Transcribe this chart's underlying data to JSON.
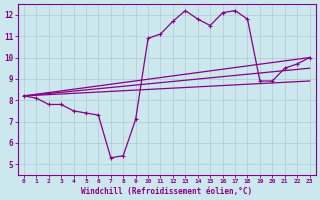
{
  "xlabel": "Windchill (Refroidissement éolien,°C)",
  "bg_color": "#cce8ee",
  "grid_color": "#aacccc",
  "line_color": "#880088",
  "xlim": [
    -0.5,
    23.5
  ],
  "ylim": [
    4.5,
    12.5
  ],
  "xticks": [
    0,
    1,
    2,
    3,
    4,
    5,
    6,
    7,
    8,
    9,
    10,
    11,
    12,
    13,
    14,
    15,
    16,
    17,
    18,
    19,
    20,
    21,
    22,
    23
  ],
  "yticks": [
    5,
    6,
    7,
    8,
    9,
    10,
    11,
    12
  ],
  "line1_x": [
    0,
    1,
    2,
    3,
    4,
    5,
    6,
    7,
    8,
    9,
    10,
    11,
    12,
    13,
    14,
    15,
    16,
    17,
    18,
    19,
    20,
    21,
    22,
    23
  ],
  "line1_y": [
    8.2,
    8.1,
    7.8,
    7.8,
    7.5,
    7.4,
    7.3,
    5.3,
    5.4,
    7.1,
    10.9,
    11.1,
    11.7,
    12.2,
    11.8,
    11.5,
    12.1,
    12.2,
    11.8,
    8.9,
    8.9,
    9.5,
    9.7,
    10.0
  ],
  "line2_x": [
    0,
    23
  ],
  "line2_y": [
    8.2,
    10.0
  ],
  "line3_x": [
    0,
    23
  ],
  "line3_y": [
    8.2,
    9.5
  ],
  "line4_x": [
    0,
    23
  ],
  "line4_y": [
    8.2,
    8.9
  ]
}
